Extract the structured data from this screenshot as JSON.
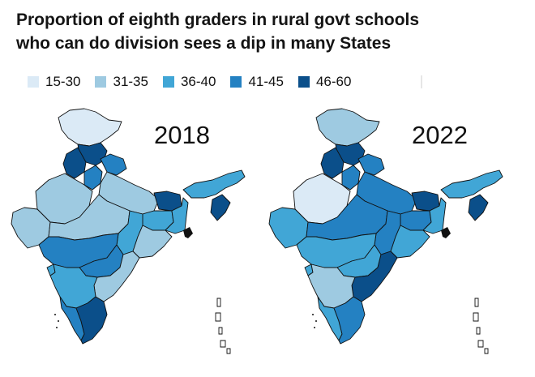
{
  "title": {
    "line1": "Proportion of eighth graders  in rural govt schools",
    "line2": "who can do division sees a dip in many States"
  },
  "legend": [
    {
      "label": "15-30",
      "color": "#dbeaf6"
    },
    {
      "label": "31-35",
      "color": "#9ecae1"
    },
    {
      "label": "36-40",
      "color": "#41a6d6"
    },
    {
      "label": "41-45",
      "color": "#2481c2"
    },
    {
      "label": "46-60",
      "color": "#0b4f8a"
    }
  ],
  "maps": [
    {
      "year": "2018",
      "regions": {
        "jk": "15-30",
        "hp": "46-60",
        "pb": "46-60",
        "uk": "41-45",
        "hr": "41-45",
        "raj": "31-35",
        "up": "31-35",
        "bih": "46-60",
        "ne": "36-40",
        "mzr": "46-60",
        "guj": "31-35",
        "mp": "31-35",
        "jh": "36-40",
        "wb": "36-40",
        "cg": "36-40",
        "od": "31-35",
        "mh": "41-45",
        "tg": "41-45",
        "ap": "31-35",
        "ka": "36-40",
        "goa": "36-40",
        "ker": "41-45",
        "tn": "46-60"
      }
    },
    {
      "year": "2022",
      "regions": {
        "jk": "31-35",
        "hp": "46-60",
        "pb": "46-60",
        "uk": "41-45",
        "hr": "41-45",
        "raj": "15-30",
        "up": "41-45",
        "bih": "46-60",
        "ne": "36-40",
        "mzr": "46-60",
        "guj": "36-40",
        "mp": "41-45",
        "jh": "41-45",
        "wb": "36-40",
        "cg": "41-45",
        "od": "36-40",
        "mh": "36-40",
        "tg": "36-40",
        "ap": "46-60",
        "ka": "31-35",
        "goa": "36-40",
        "ker": "36-40",
        "tn": "41-45"
      }
    }
  ]
}
